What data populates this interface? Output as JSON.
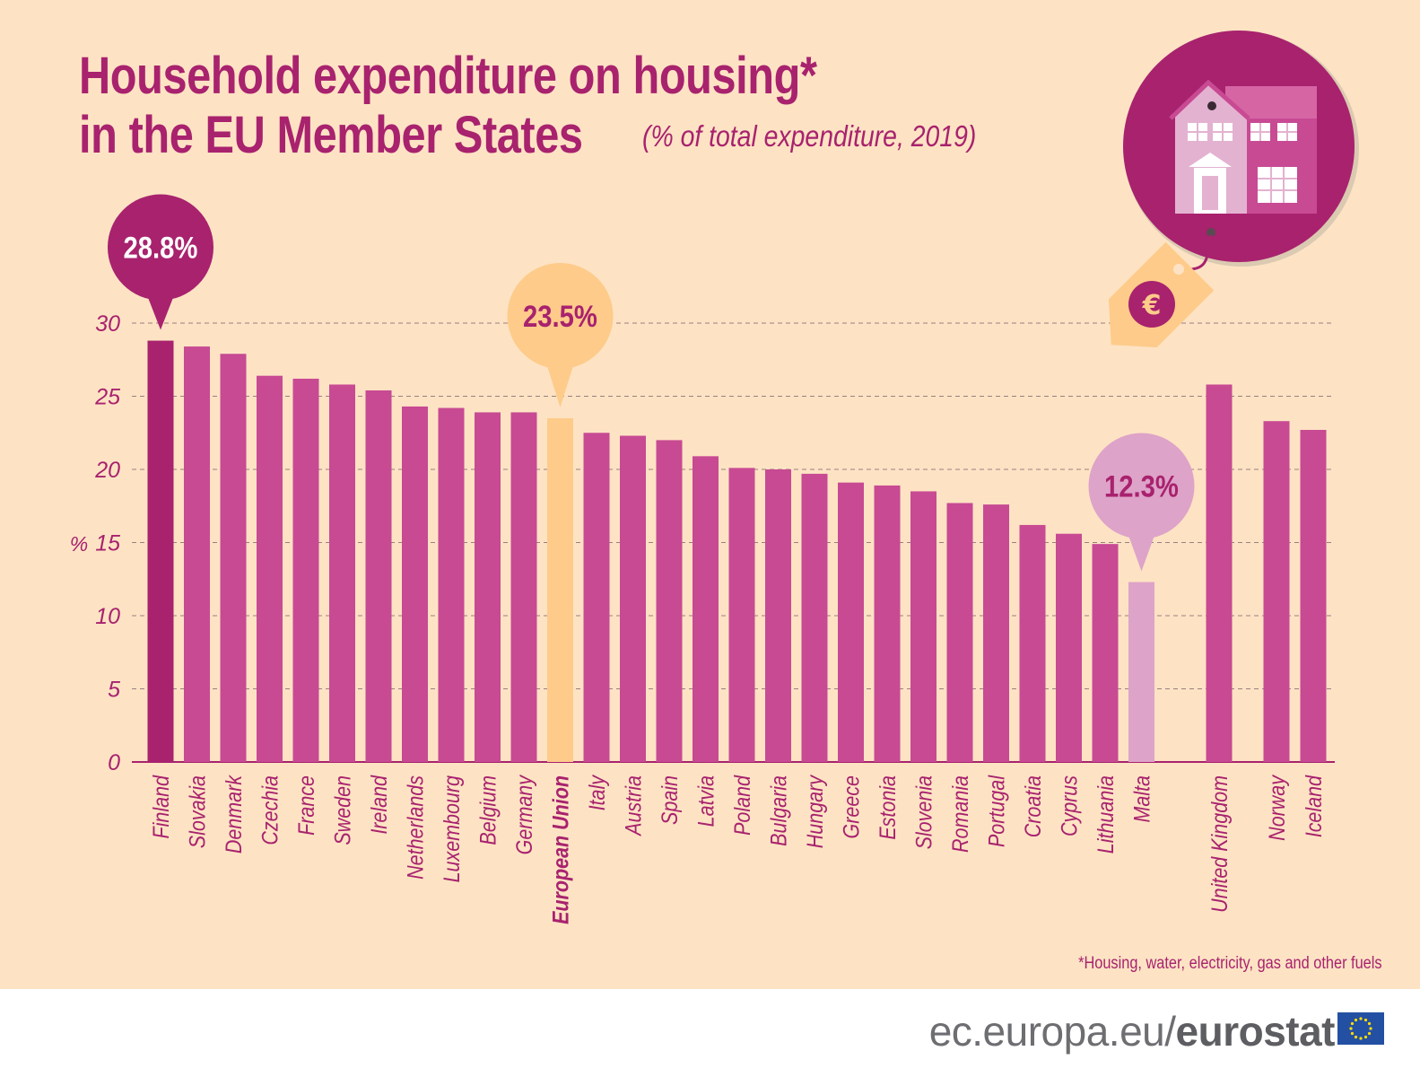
{
  "header": {
    "title_line1": "Household expenditure on housing*",
    "title_line2": "in the EU Member States",
    "subtitle": "(% of total expenditure, 2019)"
  },
  "footnote": "*Housing, water, electricity, gas and other fuels",
  "footer": {
    "url_prefix": "ec.europa.eu/",
    "url_brand": "eurostat"
  },
  "icons": {
    "house": "house-icon",
    "price_tag": "euro-price-tag-icon",
    "eu_flag": "eu-flag-icon"
  },
  "colors": {
    "background": "#fde3c4",
    "bar": "#c84a93",
    "bar_highlight": "#a8226e",
    "bar_eu": "#fecb8a",
    "bar_malta": "#dea3c8",
    "text": "#a8226e",
    "footer_text": "#6d6e71"
  },
  "chart_data": {
    "type": "bar",
    "title": "Household expenditure on housing* in the EU Member States",
    "subtitle": "(% of total expenditure, 2019)",
    "ylabel": "%",
    "ylim": [
      0,
      30
    ],
    "yticks": [
      0,
      5,
      10,
      15,
      20,
      25,
      30
    ],
    "grid": "horizontal-dashed",
    "categories": [
      "Finland",
      "Slovakia",
      "Denmark",
      "Czechia",
      "France",
      "Sweden",
      "Ireland",
      "Netherlands",
      "Luxembourg",
      "Belgium",
      "Germany",
      "European Union",
      "Italy",
      "Austria",
      "Spain",
      "Latvia",
      "Poland",
      "Bulgaria",
      "Hungary",
      "Greece",
      "Estonia",
      "Slovenia",
      "Romania",
      "Portugal",
      "Croatia",
      "Cyprus",
      "Lithuania",
      "Malta",
      "United Kingdom",
      "Norway",
      "Iceland"
    ],
    "values": [
      28.8,
      28.4,
      27.9,
      26.4,
      26.2,
      25.8,
      25.4,
      24.3,
      24.2,
      23.9,
      23.9,
      23.5,
      22.5,
      22.3,
      22.0,
      20.9,
      20.1,
      20.0,
      19.7,
      19.1,
      18.9,
      18.5,
      17.7,
      17.6,
      16.2,
      15.6,
      14.9,
      12.3,
      25.8,
      23.3,
      22.7
    ],
    "annotations": [
      {
        "category": "Finland",
        "label": "28.8%"
      },
      {
        "category": "European Union",
        "label": "23.5%"
      },
      {
        "category": "Malta",
        "label": "12.3%"
      }
    ]
  }
}
